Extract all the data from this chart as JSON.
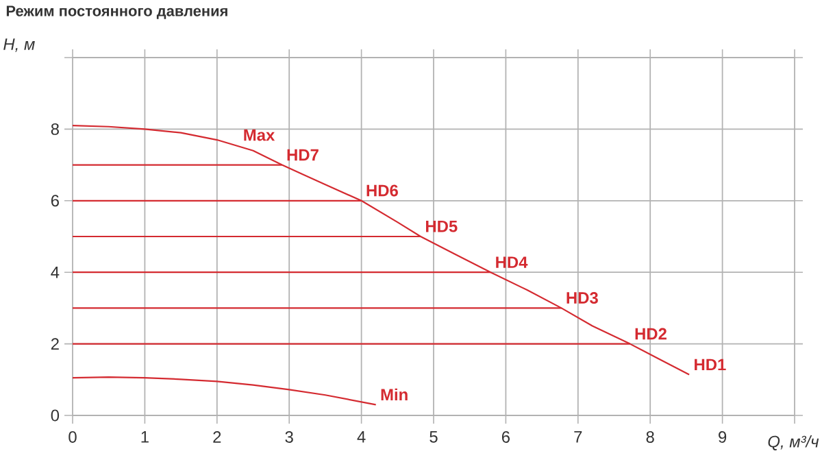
{
  "chart_data": {
    "type": "line",
    "title": "Режим постоянного давления",
    "xlabel": "Q, м³/ч",
    "ylabel": "H, м",
    "xlim": [
      0,
      10
    ],
    "xticks": [
      0,
      1,
      2,
      3,
      4,
      5,
      6,
      7,
      8,
      9,
      {
        "value": 10,
        "label": null
      }
    ],
    "ylim": [
      0,
      10
    ],
    "yticks": [
      0,
      2,
      4,
      6,
      8,
      {
        "value": 10,
        "label": null
      }
    ],
    "grid": true,
    "series": [
      {
        "color": "#d42a30",
        "x": [
          0,
          0.5,
          1,
          1.5,
          2,
          2.5,
          2.9,
          3.5,
          4,
          4.5,
          4.82,
          5.3,
          5.79,
          6.3,
          6.77,
          7.2,
          7.72,
          8.1,
          8.54
        ],
        "values": [
          8.1,
          8.07,
          8.0,
          7.9,
          7.7,
          7.4,
          7.0,
          6.45,
          6.0,
          5.4,
          5.0,
          4.5,
          4.0,
          3.5,
          3.0,
          2.5,
          2.0,
          1.6,
          1.14
        ]
      },
      {
        "color": "#d42a30",
        "x": [
          0,
          2.9
        ],
        "values": [
          7,
          7
        ]
      },
      {
        "color": "#d42a30",
        "x": [
          0,
          4.0
        ],
        "values": [
          6,
          6
        ]
      },
      {
        "color": "#d42a30",
        "x": [
          0,
          4.82
        ],
        "values": [
          5,
          5
        ]
      },
      {
        "color": "#d42a30",
        "x": [
          0,
          5.79
        ],
        "values": [
          4,
          4
        ]
      },
      {
        "color": "#d42a30",
        "x": [
          0,
          6.77
        ],
        "values": [
          3,
          3
        ]
      },
      {
        "color": "#d42a30",
        "x": [
          0,
          7.72
        ],
        "values": [
          2,
          2
        ]
      },
      {
        "color": "#d42a30",
        "x": [
          0,
          0.5,
          1,
          1.5,
          2,
          2.5,
          3,
          3.5,
          4.2
        ],
        "values": [
          1.05,
          1.07,
          1.05,
          1.01,
          0.95,
          0.85,
          0.72,
          0.57,
          0.3
        ]
      }
    ],
    "annotations": [
      {
        "text": "Max",
        "x": 2.3,
        "y": 7.55
      },
      {
        "text": "HD7",
        "x": 2.9,
        "y": 7
      },
      {
        "text": "HD6",
        "x": 4.0,
        "y": 6
      },
      {
        "text": "HD5",
        "x": 4.82,
        "y": 5
      },
      {
        "text": "HD4",
        "x": 5.79,
        "y": 4
      },
      {
        "text": "HD3",
        "x": 6.77,
        "y": 3
      },
      {
        "text": "HD2",
        "x": 7.72,
        "y": 2
      },
      {
        "text": "HD1",
        "x": 8.54,
        "y": 1.14
      },
      {
        "text": "Min",
        "x": 4.2,
        "y": 0.3
      }
    ]
  }
}
